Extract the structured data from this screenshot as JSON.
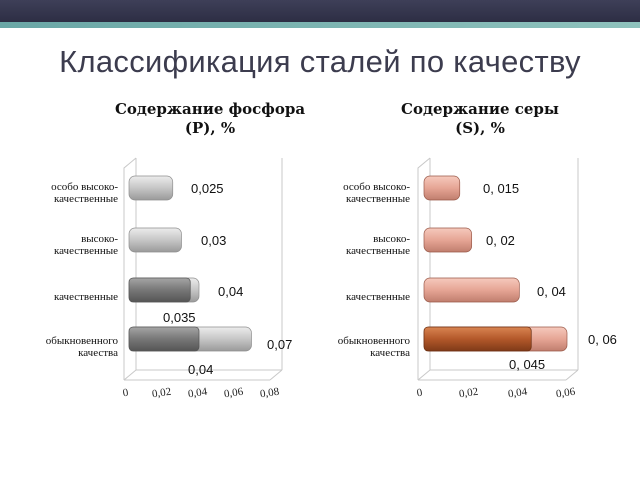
{
  "page": {
    "title": "Классификация сталей по качеству"
  },
  "left_chart": {
    "heading_line1": "Содержание фосфора",
    "heading_line2": "(P), %",
    "categories": [
      [
        "особо высоко-",
        "качественные"
      ],
      [
        "высоко-",
        "качественные"
      ],
      [
        "качественные"
      ],
      [
        "обыкновенного",
        "качества"
      ]
    ],
    "tick_labels": [
      "0",
      "0,02",
      "0,04",
      "0,06",
      "0,08"
    ],
    "value_labels": {
      "row1": "0,025",
      "row2": "0,03",
      "row3_total": "0,04",
      "row3_dark": "0,035",
      "row4_total": "0,07",
      "row4_dark": "0,04"
    }
  },
  "right_chart": {
    "heading_line1": "Содержание серы",
    "heading_line2": "(S), %",
    "categories": [
      [
        "особо высоко-",
        "качественные"
      ],
      [
        "высоко-",
        "качественные"
      ],
      [
        "качественные"
      ],
      [
        "обыкновенного",
        "качества"
      ]
    ],
    "tick_labels": [
      "0",
      "0,02",
      "0,04",
      "0,06"
    ],
    "value_labels": {
      "row1": "0, 015",
      "row2": "0, 02",
      "row3": "0, 04",
      "row4_total": "0, 06",
      "row4_dark": "0, 045"
    }
  },
  "chart_data": [
    {
      "type": "bar",
      "orientation": "horizontal",
      "stacked": true,
      "title": "Содержание фосфора (P), %",
      "categories": [
        "особо высоко-качественные",
        "высоко-качественные",
        "качественные",
        "обыкновенного качества"
      ],
      "series": [
        {
          "values": [
            0,
            0,
            0.035,
            0.04
          ]
        },
        {
          "values": [
            0.025,
            0.03,
            0.005,
            0.03
          ]
        }
      ],
      "xlim": [
        0,
        0.08
      ],
      "xticks": [
        0,
        0.02,
        0.04,
        0.06,
        0.08
      ],
      "colors": {
        "light": "#c8c8c8",
        "dark": "#7a7a7a"
      }
    },
    {
      "type": "bar",
      "orientation": "horizontal",
      "stacked": true,
      "title": "Содержание серы (S), %",
      "categories": [
        "особо высоко-качественные",
        "высоко-качественные",
        "качественные",
        "обыкновенного качества"
      ],
      "series": [
        {
          "values": [
            0,
            0,
            0,
            0.045
          ]
        },
        {
          "values": [
            0.015,
            0.02,
            0.04,
            0.015
          ]
        }
      ],
      "xlim": [
        0,
        0.06
      ],
      "xticks": [
        0,
        0.02,
        0.04,
        0.06
      ],
      "colors": {
        "light": "#e8a898",
        "dark": "#b25a2c"
      }
    }
  ]
}
